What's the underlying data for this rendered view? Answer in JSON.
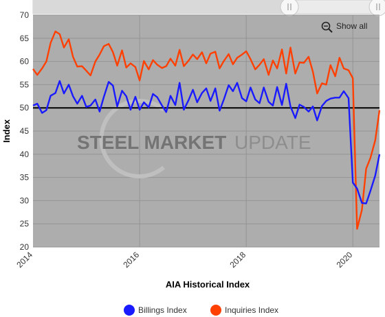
{
  "chart_data": {
    "type": "line",
    "title": "AIA Historical Index",
    "ylabel": "Index",
    "xlabel": "",
    "ylim": [
      20,
      70
    ],
    "xlim": [
      2014.0,
      2020.5
    ],
    "yticks": [
      "20",
      "25",
      "30",
      "35",
      "40",
      "45",
      "50",
      "55",
      "60",
      "65",
      "70"
    ],
    "xticks": [
      "2014",
      "2016",
      "2018",
      "2020"
    ],
    "reference_line": 50,
    "grid": true,
    "legend_position": "bottom",
    "watermark": {
      "bold": "STEEL MARKET",
      "light": "UPDATE"
    },
    "zoom_button": {
      "label": "Show all",
      "icon": "zoom-out-icon"
    },
    "colors": {
      "billings": "#1a1aff",
      "inquiries": "#ff4000",
      "plot_bg": "#adadad",
      "reference": "#000000"
    },
    "series": [
      {
        "name": "Billings Index",
        "x": [
          2014.0,
          2014.08,
          2014.17,
          2014.25,
          2014.33,
          2014.42,
          2014.5,
          2014.58,
          2014.67,
          2014.75,
          2014.83,
          2014.92,
          2015.0,
          2015.08,
          2015.17,
          2015.25,
          2015.33,
          2015.42,
          2015.5,
          2015.58,
          2015.67,
          2015.75,
          2015.83,
          2015.92,
          2016.0,
          2016.08,
          2016.17,
          2016.25,
          2016.33,
          2016.42,
          2016.5,
          2016.58,
          2016.67,
          2016.75,
          2016.83,
          2016.92,
          2017.0,
          2017.08,
          2017.17,
          2017.25,
          2017.33,
          2017.42,
          2017.5,
          2017.58,
          2017.67,
          2017.75,
          2017.83,
          2017.92,
          2018.0,
          2018.08,
          2018.17,
          2018.25,
          2018.33,
          2018.42,
          2018.5,
          2018.58,
          2018.67,
          2018.75,
          2018.83,
          2018.92,
          2019.0,
          2019.08,
          2019.17,
          2019.25,
          2019.33,
          2019.42,
          2019.5,
          2019.58,
          2019.67,
          2019.75,
          2019.83,
          2019.92,
          2020.0,
          2020.08,
          2020.17,
          2020.25,
          2020.33,
          2020.42,
          2020.5
        ],
        "values": [
          50.5,
          50.9,
          48.9,
          49.5,
          52.6,
          53.2,
          55.8,
          53.1,
          55.0,
          52.5,
          50.9,
          52.6,
          50.2,
          50.5,
          51.8,
          49.2,
          52.4,
          55.6,
          54.8,
          50.3,
          53.7,
          52.5,
          49.6,
          52.4,
          49.6,
          51.2,
          50.1,
          53.0,
          52.3,
          50.5,
          49.1,
          52.6,
          50.6,
          55.4,
          49.6,
          51.7,
          53.9,
          51.2,
          53.2,
          54.2,
          51.5,
          54.2,
          49.4,
          51.8,
          54.9,
          53.6,
          55.4,
          52.1,
          51.4,
          54.4,
          51.8,
          51.0,
          54.4,
          51.3,
          50.5,
          54.5,
          50.6,
          55.2,
          50.3,
          47.8,
          50.7,
          50.2,
          49.2,
          50.3,
          47.3,
          50.4,
          51.5,
          52.0,
          52.2,
          52.2,
          53.6,
          52.1,
          33.9,
          32.6,
          29.5,
          29.4,
          32.1,
          35.4,
          40.0
        ]
      },
      {
        "name": "Inquiries Index",
        "x": [
          2014.0,
          2014.08,
          2014.17,
          2014.25,
          2014.33,
          2014.42,
          2014.5,
          2014.58,
          2014.67,
          2014.75,
          2014.83,
          2014.92,
          2015.0,
          2015.08,
          2015.17,
          2015.25,
          2015.33,
          2015.42,
          2015.5,
          2015.58,
          2015.67,
          2015.75,
          2015.83,
          2015.92,
          2016.0,
          2016.08,
          2016.17,
          2016.25,
          2016.33,
          2016.42,
          2016.5,
          2016.58,
          2016.67,
          2016.75,
          2016.83,
          2016.92,
          2017.0,
          2017.08,
          2017.17,
          2017.25,
          2017.33,
          2017.42,
          2017.5,
          2017.58,
          2017.67,
          2017.75,
          2017.83,
          2017.92,
          2018.0,
          2018.08,
          2018.17,
          2018.25,
          2018.33,
          2018.42,
          2018.5,
          2018.58,
          2018.67,
          2018.75,
          2018.83,
          2018.92,
          2019.0,
          2019.08,
          2019.17,
          2019.25,
          2019.33,
          2019.42,
          2019.5,
          2019.58,
          2019.67,
          2019.75,
          2019.83,
          2019.92,
          2020.0,
          2020.08,
          2020.17,
          2020.25,
          2020.33,
          2020.42,
          2020.5
        ],
        "values": [
          58.4,
          57.1,
          58.5,
          60.0,
          64.0,
          66.5,
          65.9,
          63.0,
          64.8,
          61.0,
          58.9,
          59.0,
          58.0,
          57.0,
          60.0,
          61.5,
          63.3,
          63.8,
          62.0,
          59.1,
          62.4,
          58.7,
          59.6,
          58.8,
          55.9,
          60.1,
          58.3,
          60.3,
          59.3,
          58.6,
          59.0,
          60.6,
          59.1,
          62.5,
          59.0,
          60.2,
          61.5,
          60.5,
          62.0,
          59.6,
          61.7,
          62.1,
          58.5,
          60.1,
          61.6,
          59.4,
          60.8,
          61.5,
          62.2,
          60.5,
          58.3,
          59.3,
          60.5,
          57.1,
          60.2,
          58.5,
          62.6,
          57.4,
          63.0,
          57.4,
          59.8,
          59.7,
          61.0,
          57.8,
          53.1,
          55.3,
          55.0,
          59.2,
          56.8,
          60.8,
          58.5,
          58.1,
          56.4,
          23.9,
          28.0,
          36.9,
          39.2,
          43.0,
          49.5
        ]
      }
    ]
  }
}
